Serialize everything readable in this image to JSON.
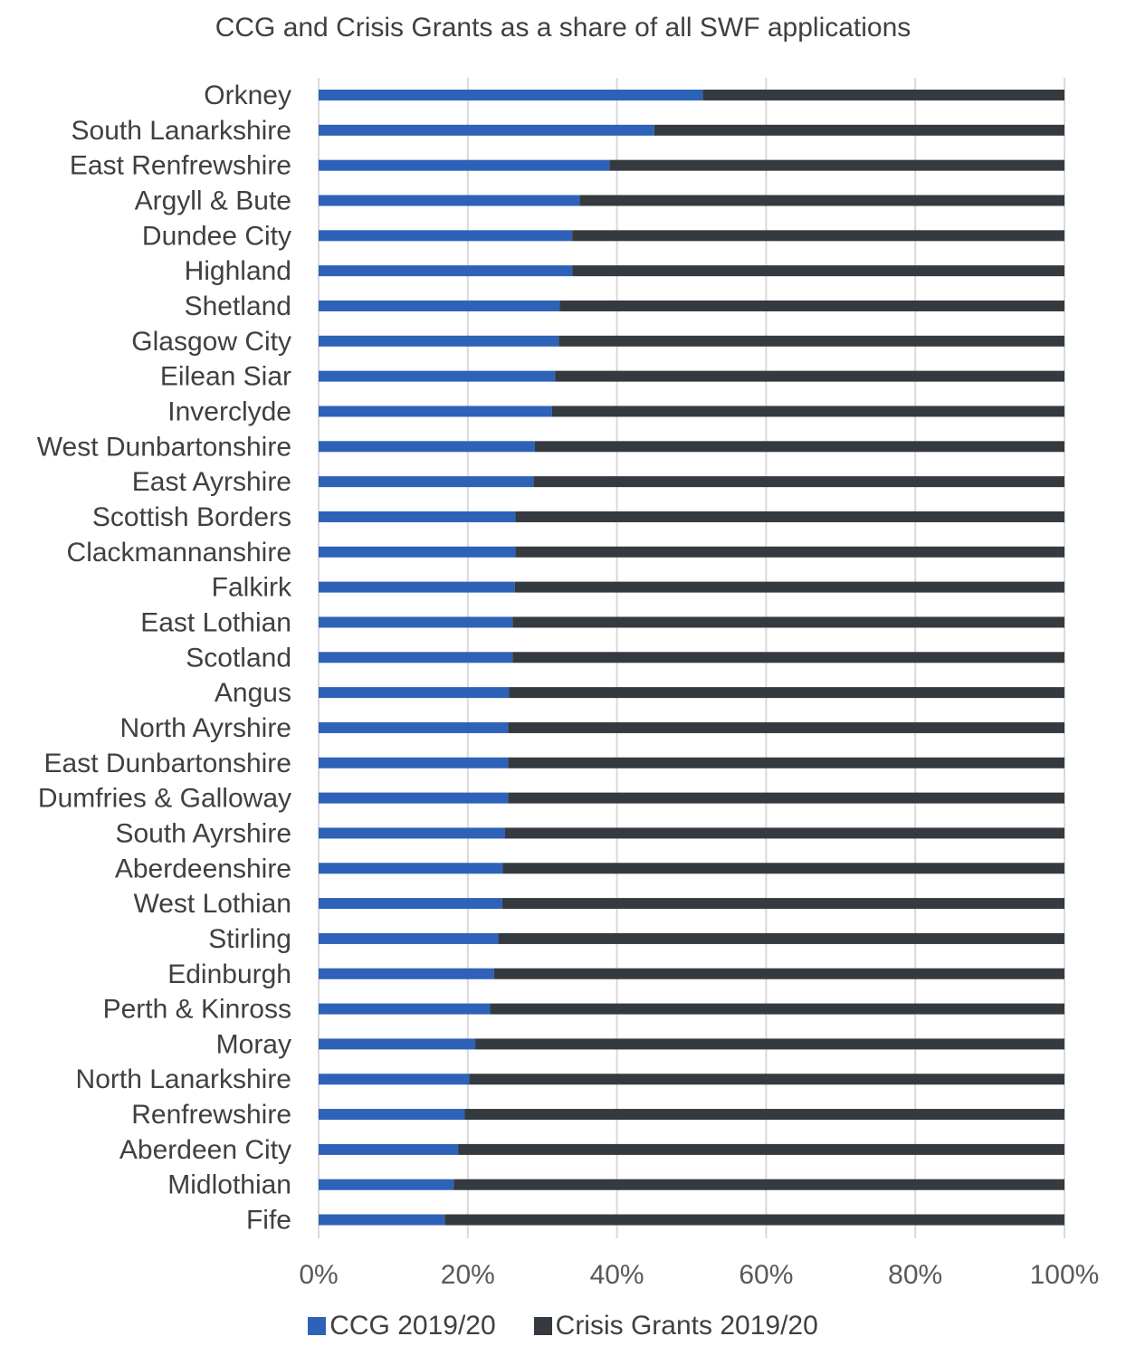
{
  "chart_data": {
    "type": "bar",
    "orientation": "horizontal",
    "stacked": "percent",
    "title": "CCG and Crisis Grants as a share of all SWF applications",
    "categories": [
      "Orkney",
      "South Lanarkshire",
      "East Renfrewshire",
      "Argyll & Bute",
      "Dundee City",
      "Highland",
      "Shetland",
      "Glasgow City",
      "Eilean Siar",
      "Inverclyde",
      "West Dunbartonshire",
      "East Ayrshire",
      "Scottish Borders",
      "Clackmannanshire",
      "Falkirk",
      "East Lothian",
      "Scotland",
      "Angus",
      "North Ayrshire",
      "East Dunbartonshire",
      "Dumfries & Galloway",
      "South Ayrshire",
      "Aberdeenshire",
      "West Lothian",
      "Stirling",
      "Edinburgh",
      "Perth & Kinross",
      "Moray",
      "North Lanarkshire",
      "Renfrewshire",
      "Aberdeen City",
      "Midlothian",
      "Fife"
    ],
    "series": [
      {
        "name": "CCG 2019/20",
        "color": "#2e62b8",
        "values": [
          51.5,
          45,
          39,
          35,
          34,
          34,
          32.3,
          32.2,
          31.7,
          31.3,
          29,
          28.8,
          26.4,
          26.4,
          26.3,
          26,
          26,
          25.5,
          25.4,
          25.4,
          25.4,
          25,
          24.7,
          24.6,
          24.1,
          23.5,
          23,
          21,
          20.2,
          19.6,
          18.7,
          18.1,
          16.9
        ]
      },
      {
        "name": "Crisis Grants 2019/20",
        "color": "#353a40",
        "values": [
          48.5,
          55,
          61,
          65,
          66,
          66,
          67.7,
          67.8,
          68.3,
          68.7,
          71,
          71.2,
          73.6,
          73.6,
          73.7,
          74,
          74,
          74.5,
          74.6,
          74.6,
          74.6,
          75,
          75.3,
          75.4,
          75.9,
          76.5,
          77,
          79,
          79.8,
          80.4,
          81.3,
          81.9,
          83.1
        ]
      }
    ],
    "xlim": [
      0,
      100
    ],
    "xticks": [
      "0%",
      "20%",
      "40%",
      "60%",
      "80%",
      "100%"
    ],
    "grid": true,
    "legend": "bottom"
  }
}
